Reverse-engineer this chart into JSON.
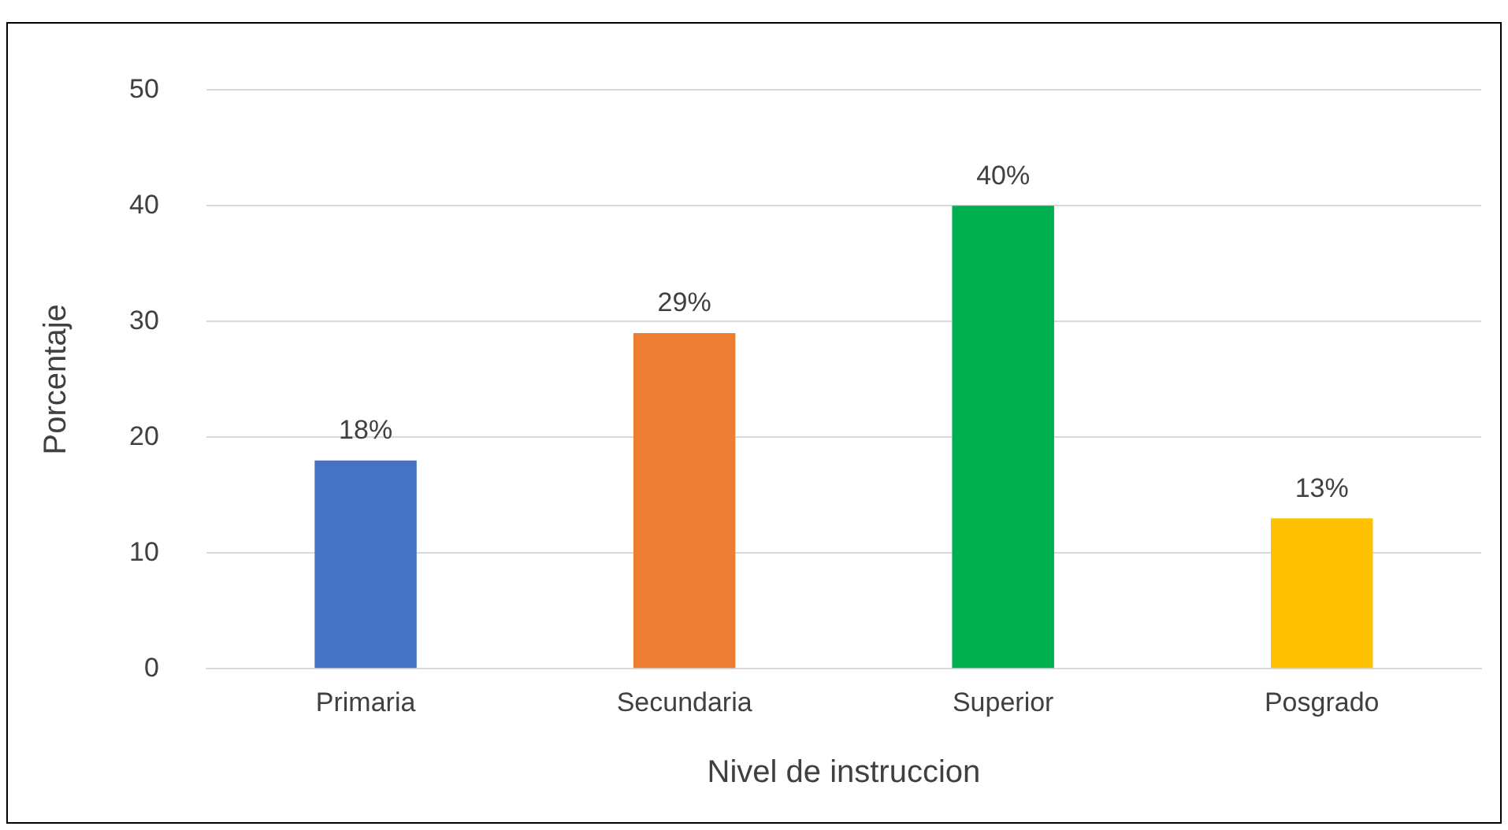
{
  "chart_data": {
    "type": "bar",
    "xlabel": "Nivel de instruccion",
    "ylabel": "Porcentaje",
    "categories": [
      "Primaria",
      "Secundaria",
      "Superior",
      "Posgrado"
    ],
    "values": [
      18,
      29,
      40,
      13
    ],
    "colors": [
      "#4472c4",
      "#ed7d31",
      "#00b050",
      "#ffc000"
    ],
    "value_labels": [
      "18%",
      "29%",
      "40%",
      "13%"
    ],
    "ylim": [
      0,
      50
    ],
    "yticks": [
      0,
      10,
      20,
      30,
      40,
      50
    ],
    "grid": "y",
    "legend": false
  }
}
